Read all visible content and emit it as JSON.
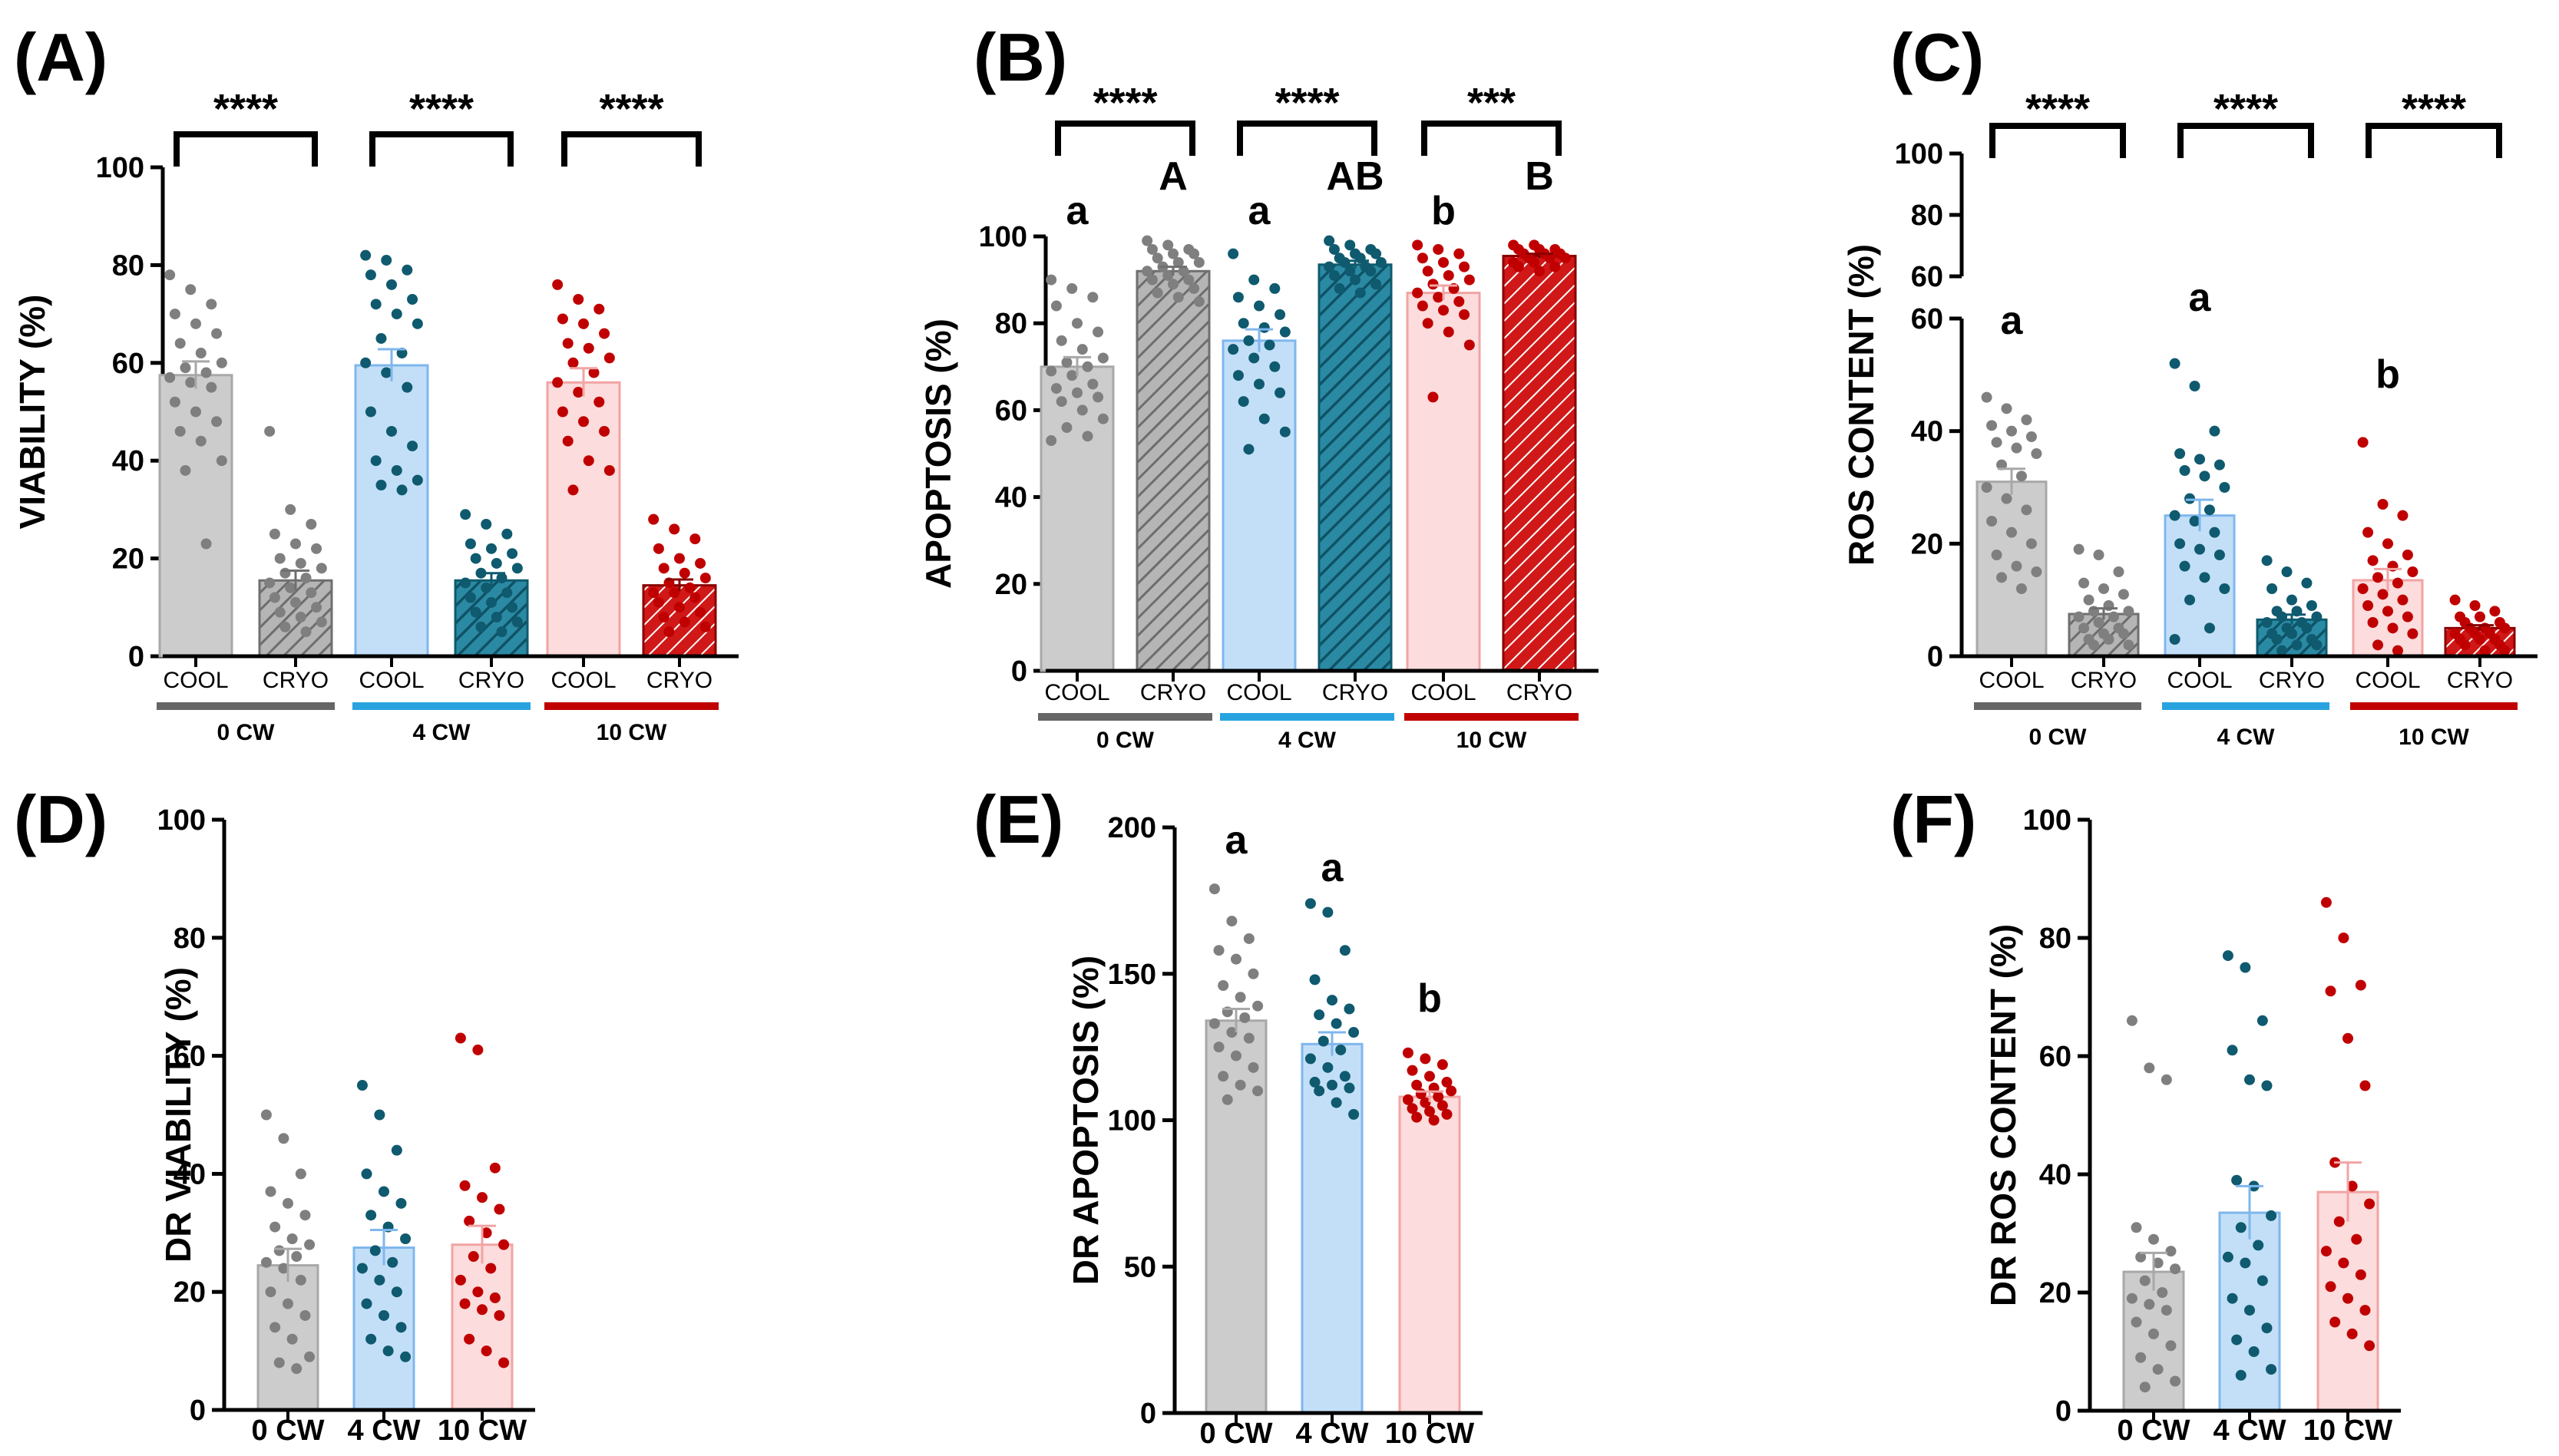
{
  "chart_data": [
    {
      "id": "A",
      "type": "bar",
      "panel_label": "(A)",
      "ylabel": "VIABILITY (%)",
      "ylim": [
        0,
        100
      ],
      "yticks": [
        "0",
        "20",
        "40",
        "60",
        "80",
        "100"
      ],
      "bars": [
        {
          "category": "COOL",
          "group": "0 CW",
          "treatment": "COOL",
          "value": 57.5,
          "sem": 2.8,
          "color": "#cccccc",
          "edge": "#a8a8a8",
          "dot": "#7f7f7f",
          "points": [
            78,
            75,
            72,
            70,
            68,
            66,
            64,
            62,
            60,
            59,
            58,
            57,
            56,
            55,
            52,
            50,
            48,
            46,
            44,
            40,
            38,
            23
          ]
        },
        {
          "category": "CRYO",
          "group": "0 CW",
          "treatment": "CRYO",
          "value": 15.5,
          "sem": 2.0,
          "color": "#9e9e9e",
          "edge": "#6f6f6f",
          "dot": "#7f7f7f",
          "points": [
            46,
            30,
            27,
            25,
            23,
            22,
            20,
            19,
            18,
            17,
            16,
            15,
            14,
            13,
            12,
            11,
            10,
            9,
            8,
            7,
            6,
            5
          ]
        },
        {
          "category": "COOL",
          "group": "4 CW",
          "treatment": "COOL",
          "value": 59.5,
          "sem": 3.3,
          "color": "#c3dff8",
          "edge": "#7fb7ee",
          "dot": "#0f5a6e",
          "points": [
            82,
            81,
            79,
            78,
            76,
            73,
            72,
            70,
            68,
            65,
            62,
            60,
            58,
            55,
            50,
            46,
            43,
            40,
            38,
            36,
            35,
            34
          ]
        },
        {
          "category": "CRYO",
          "group": "4 CW",
          "treatment": "CRYO",
          "value": 15.5,
          "sem": 1.5,
          "color": "#1d7892",
          "edge": "#0f5a6e",
          "dot": "#0f5a6e",
          "points": [
            29,
            27,
            25,
            23,
            22,
            21,
            20,
            19,
            18,
            17,
            16,
            15,
            14,
            13,
            12,
            11,
            10,
            9,
            8,
            7,
            6,
            5
          ]
        },
        {
          "category": "COOL",
          "group": "10 CW",
          "treatment": "COOL",
          "value": 56.0,
          "sem": 2.9,
          "color": "#fcdcdc",
          "edge": "#f2a4a4",
          "dot": "#c00000",
          "points": [
            76,
            73,
            71,
            69,
            68,
            66,
            64,
            63,
            61,
            60,
            58,
            56,
            54,
            52,
            50,
            48,
            46,
            44,
            40,
            38,
            34
          ]
        },
        {
          "category": "CRYO",
          "group": "10 CW",
          "treatment": "CRYO",
          "value": 14.5,
          "sem": 1.2,
          "color": "#c00000",
          "edge": "#8a0000",
          "dot": "#c00000",
          "points": [
            28,
            26,
            24,
            22,
            20,
            19,
            18,
            17,
            16,
            15,
            14,
            13,
            13,
            12,
            11,
            10,
            9,
            8,
            7,
            6,
            5
          ]
        }
      ],
      "categories": [
        "COOL",
        "CRYO",
        "COOL",
        "CRYO",
        "COOL",
        "CRYO"
      ],
      "groups": [
        {
          "label": "0 CW",
          "color": "#666666"
        },
        {
          "label": "4 CW",
          "color": "#29a3e0"
        },
        {
          "label": "10 CW",
          "color": "#c00000"
        }
      ],
      "significance": [
        "****",
        "****",
        "****"
      ],
      "letters": []
    },
    {
      "id": "B",
      "type": "bar",
      "panel_label": "(B)",
      "ylabel": "APOPTOSIS (%)",
      "ylim": [
        0,
        100
      ],
      "yticks": [
        "0",
        "20",
        "40",
        "60",
        "80",
        "100"
      ],
      "bars": [
        {
          "category": "COOL",
          "group": "0 CW",
          "treatment": "COOL",
          "value": 70.0,
          "sem": 2.2,
          "color": "#cccccc",
          "edge": "#a8a8a8",
          "dot": "#7f7f7f",
          "points": [
            90,
            88,
            86,
            84,
            80,
            78,
            76,
            74,
            72,
            71,
            70,
            69,
            68,
            66,
            65,
            64,
            63,
            62,
            60,
            58,
            56,
            54,
            53
          ]
        },
        {
          "category": "CRYO",
          "group": "0 CW",
          "treatment": "CRYO",
          "value": 92.0,
          "sem": 1.0,
          "color": "#9e9e9e",
          "edge": "#6f6f6f",
          "dot": "#7f7f7f",
          "points": [
            99,
            98,
            97,
            97,
            96,
            96,
            95,
            94,
            94,
            93,
            92,
            92,
            91,
            90,
            90,
            89,
            88,
            87,
            86,
            85
          ]
        },
        {
          "category": "COOL",
          "group": "4 CW",
          "treatment": "COOL",
          "value": 76.0,
          "sem": 2.6,
          "color": "#c3dff8",
          "edge": "#7fb7ee",
          "dot": "#0f5a6e",
          "points": [
            96,
            90,
            88,
            86,
            84,
            82,
            80,
            79,
            78,
            76,
            75,
            74,
            72,
            70,
            68,
            66,
            64,
            62,
            58,
            55,
            51
          ]
        },
        {
          "category": "CRYO",
          "group": "4 CW",
          "treatment": "CRYO",
          "value": 93.5,
          "sem": 0.9,
          "color": "#1d7892",
          "edge": "#0f5a6e",
          "dot": "#0f5a6e",
          "points": [
            99,
            98,
            97,
            97,
            96,
            96,
            95,
            95,
            94,
            94,
            93,
            93,
            92,
            92,
            91,
            90,
            89,
            88,
            87
          ]
        },
        {
          "category": "COOL",
          "group": "10 CW",
          "treatment": "COOL",
          "value": 87.0,
          "sem": 1.7,
          "color": "#fcdcdc",
          "edge": "#f2a4a4",
          "dot": "#c00000",
          "points": [
            98,
            97,
            96,
            95,
            94,
            93,
            92,
            91,
            90,
            89,
            88,
            87,
            86,
            85,
            84,
            83,
            82,
            80,
            78,
            75,
            63
          ]
        },
        {
          "category": "CRYO",
          "group": "10 CW",
          "treatment": "CRYO",
          "value": 95.5,
          "sem": 0.5,
          "color": "#c00000",
          "edge": "#8a0000",
          "dot": "#c00000",
          "points": [
            98,
            98,
            97,
            97,
            97,
            96,
            96,
            96,
            95,
            95,
            95,
            94,
            94,
            93,
            93,
            92
          ]
        }
      ],
      "categories": [
        "COOL",
        "CRYO",
        "COOL",
        "CRYO",
        "COOL",
        "CRYO"
      ],
      "groups": [
        {
          "label": "0 CW",
          "color": "#666666"
        },
        {
          "label": "4 CW",
          "color": "#29a3e0"
        },
        {
          "label": "10 CW",
          "color": "#c00000"
        }
      ],
      "significance": [
        "****",
        "****",
        "***"
      ],
      "letters": [
        "a",
        "A",
        "a",
        "AB",
        "b",
        "B"
      ]
    },
    {
      "id": "C",
      "type": "bar",
      "panel_label": "(C)",
      "ylabel": "ROS CONTENT (%)",
      "ylim": [
        0,
        60
      ],
      "ylim_upper": [
        60,
        100
      ],
      "yticks": [
        "0",
        "20",
        "40",
        "60"
      ],
      "yticks_upper": [
        "60",
        "80",
        "100"
      ],
      "bars": [
        {
          "category": "COOL",
          "group": "0 CW",
          "treatment": "COOL",
          "value": 31.0,
          "sem": 2.3,
          "color": "#cccccc",
          "edge": "#a8a8a8",
          "dot": "#7f7f7f",
          "points": [
            46,
            44,
            42,
            41,
            40,
            39,
            38,
            37,
            36,
            34,
            32,
            30,
            28,
            26,
            24,
            22,
            20,
            18,
            16,
            15,
            14,
            12
          ]
        },
        {
          "category": "CRYO",
          "group": "0 CW",
          "treatment": "CRYO",
          "value": 7.5,
          "sem": 1.0,
          "color": "#9e9e9e",
          "edge": "#6f6f6f",
          "dot": "#7f7f7f",
          "points": [
            19,
            18,
            15,
            13,
            12,
            11,
            10,
            9,
            8,
            8,
            7,
            7,
            6,
            5,
            5,
            4,
            4,
            3,
            3,
            2,
            2
          ]
        },
        {
          "category": "COOL",
          "group": "4 CW",
          "treatment": "COOL",
          "value": 25.0,
          "sem": 2.8,
          "color": "#c3dff8",
          "edge": "#7fb7ee",
          "dot": "#0f5a6e",
          "points": [
            52,
            48,
            40,
            36,
            35,
            34,
            33,
            32,
            30,
            28,
            26,
            25,
            24,
            22,
            20,
            19,
            18,
            16,
            14,
            12,
            10,
            5,
            3
          ]
        },
        {
          "category": "CRYO",
          "group": "4 CW",
          "treatment": "CRYO",
          "value": 6.5,
          "sem": 0.9,
          "color": "#1d7892",
          "edge": "#0f5a6e",
          "dot": "#0f5a6e",
          "points": [
            17,
            15,
            13,
            12,
            10,
            9,
            8,
            8,
            7,
            7,
            6,
            6,
            5,
            5,
            4,
            4,
            3,
            3,
            2,
            2,
            1
          ]
        },
        {
          "category": "COOL",
          "group": "10 CW",
          "treatment": "COOL",
          "value": 13.5,
          "sem": 2.0,
          "color": "#fcdcdc",
          "edge": "#f2a4a4",
          "dot": "#c00000",
          "points": [
            38,
            27,
            25,
            22,
            20,
            18,
            17,
            16,
            15,
            14,
            13,
            12,
            11,
            10,
            9,
            8,
            7,
            6,
            5,
            4,
            2,
            1
          ]
        },
        {
          "category": "CRYO",
          "group": "10 CW",
          "treatment": "CRYO",
          "value": 5.0,
          "sem": 0.5,
          "color": "#c00000",
          "edge": "#8a0000",
          "dot": "#c00000",
          "points": [
            10,
            9,
            8,
            7,
            7,
            6,
            6,
            5,
            5,
            5,
            4,
            4,
            4,
            3,
            3,
            3,
            2,
            2,
            1,
            1
          ]
        }
      ],
      "categories": [
        "COOL",
        "CRYO",
        "COOL",
        "CRYO",
        "COOL",
        "CRYO"
      ],
      "groups": [
        {
          "label": "0 CW",
          "color": "#666666"
        },
        {
          "label": "4 CW",
          "color": "#29a3e0"
        },
        {
          "label": "10 CW",
          "color": "#c00000"
        }
      ],
      "significance": [
        "****",
        "****",
        "****"
      ],
      "letters": [
        "a",
        "",
        "a",
        "",
        "b",
        ""
      ]
    },
    {
      "id": "D",
      "type": "bar",
      "panel_label": "(D)",
      "ylabel": "DR VIABILITY (%)",
      "ylim": [
        0,
        100
      ],
      "yticks": [
        "0",
        "20",
        "40",
        "60",
        "80",
        "100"
      ],
      "bars": [
        {
          "category": "0 CW",
          "value": 24.5,
          "sem": 2.8,
          "color": "#cccccc",
          "edge": "#a8a8a8",
          "dot": "#7f7f7f",
          "points": [
            50,
            46,
            40,
            37,
            35,
            33,
            31,
            29,
            28,
            27,
            26,
            25,
            24,
            22,
            20,
            18,
            16,
            14,
            12,
            9,
            8,
            7
          ]
        },
        {
          "category": "4 CW",
          "value": 27.5,
          "sem": 3.0,
          "color": "#c3dff8",
          "edge": "#7fb7ee",
          "dot": "#0f5a6e",
          "points": [
            55,
            50,
            44,
            40,
            37,
            35,
            33,
            31,
            29,
            27,
            25,
            24,
            22,
            20,
            18,
            16,
            14,
            12,
            10,
            9
          ]
        },
        {
          "category": "10 CW",
          "value": 28.0,
          "sem": 3.2,
          "color": "#fcdcdc",
          "edge": "#f2a4a4",
          "dot": "#c00000",
          "points": [
            63,
            61,
            41,
            38,
            36,
            34,
            32,
            30,
            28,
            26,
            24,
            22,
            20,
            19,
            18,
            17,
            16,
            12,
            10,
            8
          ]
        }
      ],
      "categories": [
        "0 CW",
        "4 CW",
        "10 CW"
      ],
      "letters": []
    },
    {
      "id": "E",
      "type": "bar",
      "panel_label": "(E)",
      "ylabel": "DR APOPTOSIS (%)",
      "ylim": [
        0,
        200
      ],
      "yticks": [
        "0",
        "50",
        "100",
        "150",
        "200"
      ],
      "bars": [
        {
          "category": "0 CW",
          "value": 134.0,
          "sem": 4.0,
          "color": "#cccccc",
          "edge": "#a8a8a8",
          "dot": "#7f7f7f",
          "points": [
            179,
            168,
            162,
            158,
            155,
            150,
            146,
            142,
            139,
            137,
            135,
            133,
            130,
            128,
            125,
            122,
            118,
            115,
            112,
            110,
            107
          ]
        },
        {
          "category": "4 CW",
          "value": 126.0,
          "sem": 4.0,
          "color": "#c3dff8",
          "edge": "#7fb7ee",
          "dot": "#0f5a6e",
          "points": [
            174,
            171,
            158,
            148,
            141,
            138,
            136,
            133,
            130,
            127,
            124,
            121,
            118,
            115,
            113,
            112,
            111,
            110,
            106,
            102
          ]
        },
        {
          "category": "10 CW",
          "value": 108.0,
          "sem": 1.8,
          "color": "#fcdcdc",
          "edge": "#f2a4a4",
          "dot": "#c00000",
          "points": [
            123,
            121,
            119,
            117,
            115,
            113,
            112,
            111,
            110,
            109,
            108,
            107,
            106,
            105,
            104,
            103,
            102,
            101,
            100
          ]
        }
      ],
      "categories": [
        "0 CW",
        "4 CW",
        "10 CW"
      ],
      "letters": [
        "a",
        "a",
        "b"
      ]
    },
    {
      "id": "F",
      "type": "bar",
      "panel_label": "(F)",
      "ylabel": "DR ROS CONTENT (%)",
      "ylim": [
        0,
        100
      ],
      "yticks": [
        "0",
        "20",
        "40",
        "60",
        "80",
        "100"
      ],
      "bars": [
        {
          "category": "0 CW",
          "value": 23.5,
          "sem": 3.2,
          "color": "#cccccc",
          "edge": "#a8a8a8",
          "dot": "#7f7f7f",
          "points": [
            66,
            58,
            56,
            31,
            29,
            27,
            26,
            25,
            24,
            22,
            20,
            19,
            18,
            17,
            15,
            13,
            11,
            9,
            7,
            5,
            4
          ]
        },
        {
          "category": "4 CW",
          "value": 33.5,
          "sem": 4.5,
          "color": "#c3dff8",
          "edge": "#7fb7ee",
          "dot": "#0f5a6e",
          "points": [
            77,
            75,
            66,
            61,
            56,
            55,
            39,
            38,
            33,
            31,
            28,
            26,
            25,
            22,
            19,
            17,
            14,
            12,
            10,
            7,
            6
          ]
        },
        {
          "category": "10 CW",
          "value": 37.0,
          "sem": 5.0,
          "color": "#fcdcdc",
          "edge": "#f2a4a4",
          "dot": "#c00000",
          "points": [
            86,
            80,
            72,
            71,
            63,
            55,
            42,
            38,
            35,
            32,
            29,
            27,
            25,
            23,
            21,
            19,
            17,
            15,
            13,
            11
          ]
        }
      ],
      "categories": [
        "0 CW",
        "4 CW",
        "10 CW"
      ],
      "letters": []
    }
  ]
}
